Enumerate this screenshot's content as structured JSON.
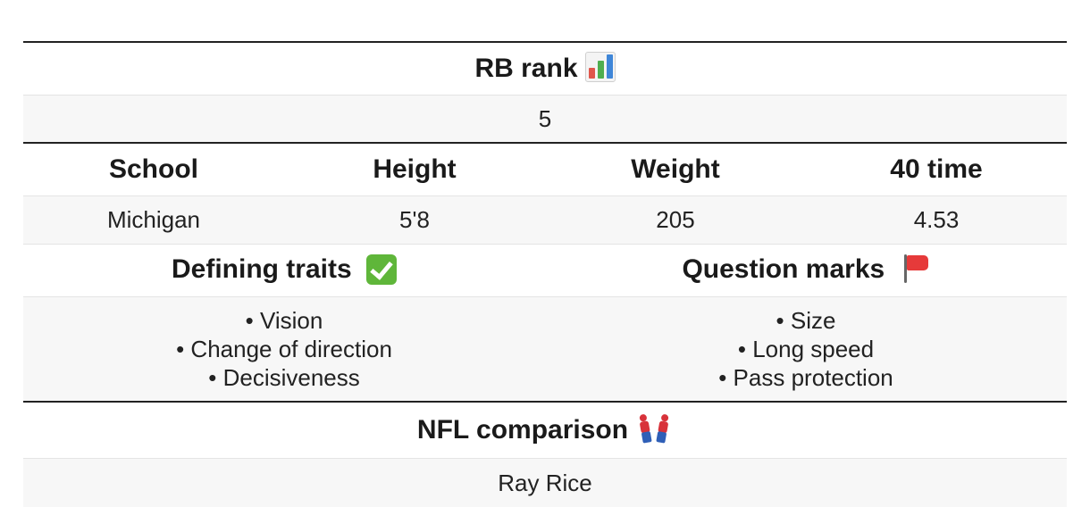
{
  "rank": {
    "header": "RB rank",
    "header_icon": "bar-chart-icon",
    "value": "5"
  },
  "stats": {
    "headers": [
      "School",
      "Height",
      "Weight",
      "40 time"
    ],
    "values": [
      "Michigan",
      "5'8",
      "205",
      "4.53"
    ]
  },
  "traits": {
    "defining_header": "Defining traits",
    "defining_icon": "check-mark-icon",
    "defining_items": [
      "• Vision",
      "• Change of direction",
      "• Decisiveness"
    ],
    "questions_header": "Question marks",
    "questions_icon": "red-flag-icon",
    "question_items": [
      "• Size",
      "• Long speed",
      "• Pass protection"
    ]
  },
  "comparison": {
    "header": "NFL comparison",
    "header_icon": "two-figures-icon",
    "value": "Ray Rice"
  },
  "colors": {
    "heavy_rule": "#222222",
    "light_rule": "#e4e4e4",
    "value_row_bg": "#f7f7f7"
  }
}
